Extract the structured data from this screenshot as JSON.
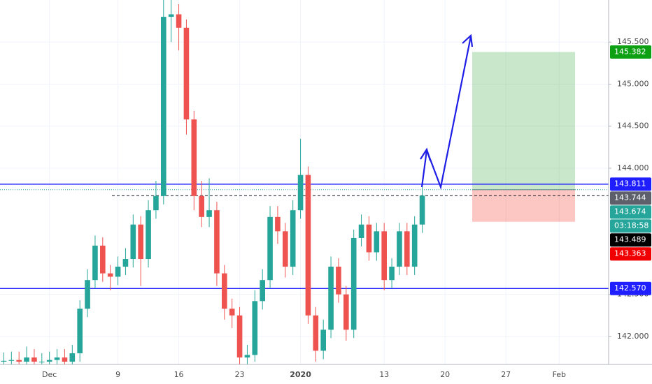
{
  "chart_data": {
    "type": "candlestick",
    "categories": [
      null,
      null,
      null,
      null,
      null,
      null,
      "Dec",
      null,
      null,
      null,
      null,
      null,
      null,
      null,
      null,
      "9",
      null,
      null,
      null,
      null,
      null,
      null,
      null,
      "16",
      null,
      null,
      null,
      null,
      null,
      null,
      null,
      "23",
      null,
      null,
      null,
      null,
      null,
      null,
      null,
      "2020",
      null,
      null,
      null,
      null,
      null,
      null,
      null,
      null,
      null,
      null,
      "13",
      null,
      null,
      null,
      null,
      null,
      null,
      null,
      "20",
      null,
      null,
      null,
      null,
      null,
      null,
      null,
      "27",
      null,
      null,
      null,
      null,
      null,
      null,
      "Feb",
      null,
      null,
      null,
      null,
      null,
      null
    ],
    "open": [
      141.7,
      141.71,
      141.72,
      141.7,
      141.75,
      141.7,
      141.7,
      141.72,
      141.75,
      141.7,
      141.8,
      142.33,
      142.67,
      143.08,
      142.75,
      142.71,
      142.83,
      142.92,
      143.33,
      142.92,
      143.5,
      143.67,
      145.8,
      145.83,
      145.67,
      144.58,
      143.67,
      143.42,
      143.5,
      142.75,
      142.33,
      142.25,
      141.75,
      141.78,
      142.42,
      142.67,
      143.42,
      143.25,
      142.83,
      143.5,
      143.92,
      142.25,
      141.83,
      142.08,
      142.83,
      142.5,
      142.08,
      143.17,
      143.33,
      143.0,
      143.25,
      142.67,
      142.83,
      143.25,
      142.83,
      143.33,
      null,
      null,
      null,
      null,
      null,
      null,
      null,
      null,
      null,
      null,
      null,
      null,
      null,
      null,
      null,
      null,
      null,
      null,
      null,
      null,
      null,
      null,
      null,
      null
    ],
    "high": [
      141.81,
      141.82,
      141.82,
      141.88,
      141.85,
      141.8,
      141.82,
      141.85,
      141.85,
      141.9,
      142.43,
      142.8,
      143.2,
      143.18,
      142.85,
      142.95,
      143.05,
      143.45,
      143.43,
      143.62,
      143.85,
      146.0,
      146.0,
      145.95,
      145.77,
      144.68,
      143.85,
      143.88,
      143.6,
      142.85,
      142.45,
      142.35,
      141.9,
      142.55,
      142.8,
      143.55,
      143.55,
      143.35,
      143.62,
      144.35,
      144.02,
      142.35,
      142.2,
      142.95,
      142.93,
      142.6,
      143.27,
      143.45,
      143.43,
      143.35,
      143.35,
      142.93,
      143.35,
      143.35,
      143.43,
      143.8,
      null,
      null,
      null,
      null,
      null,
      null,
      null,
      null,
      null,
      null,
      null,
      null,
      null,
      null,
      null,
      null,
      null,
      null,
      null,
      null,
      null,
      null,
      null,
      null
    ],
    "low": [
      141.6,
      141.61,
      141.6,
      141.6,
      141.6,
      141.6,
      141.6,
      141.62,
      141.6,
      141.6,
      141.7,
      142.23,
      142.57,
      142.65,
      142.55,
      142.61,
      142.73,
      142.82,
      142.6,
      142.82,
      143.4,
      143.57,
      145.5,
      145.4,
      144.4,
      143.5,
      143.3,
      143.3,
      142.6,
      142.2,
      142.1,
      141.65,
      141.65,
      141.7,
      142.32,
      142.57,
      143.1,
      142.7,
      142.73,
      143.4,
      142.15,
      141.7,
      141.73,
      141.98,
      142.4,
      141.95,
      141.98,
      143.07,
      142.9,
      142.9,
      142.55,
      142.57,
      142.73,
      142.73,
      142.73,
      143.23,
      null,
      null,
      null,
      null,
      null,
      null,
      null,
      null,
      null,
      null,
      null,
      null,
      null,
      null,
      null,
      null,
      null,
      null,
      null,
      null,
      null,
      null,
      null,
      null
    ],
    "close": [
      141.71,
      141.72,
      141.7,
      141.75,
      141.7,
      141.7,
      141.72,
      141.75,
      141.7,
      141.8,
      142.33,
      142.67,
      143.08,
      142.75,
      142.71,
      142.83,
      142.92,
      143.33,
      142.92,
      143.5,
      143.67,
      145.8,
      145.83,
      145.67,
      144.58,
      143.67,
      143.42,
      143.5,
      142.75,
      142.33,
      142.25,
      141.75,
      141.78,
      142.42,
      142.67,
      143.42,
      143.25,
      142.83,
      143.5,
      143.92,
      142.25,
      141.83,
      142.08,
      142.83,
      142.5,
      142.08,
      143.17,
      143.33,
      143.0,
      143.25,
      142.67,
      142.83,
      143.25,
      142.83,
      143.33,
      143.674,
      null,
      null,
      null,
      null,
      null,
      null,
      null,
      null,
      null,
      null,
      null,
      null,
      null,
      null,
      null,
      null,
      null,
      null,
      null,
      null,
      null,
      null,
      null,
      null
    ],
    "up_color": "#26a69a",
    "down_color": "#ef5350",
    "ylim": [
      141.667,
      146.0
    ],
    "yticks": [
      {
        "value": 142,
        "label": "142.000"
      },
      {
        "value": 142.5,
        "label": "142.500"
      },
      {
        "value": 144,
        "label": "144.000"
      },
      {
        "value": 144.5,
        "label": "144.500"
      },
      {
        "value": 145,
        "label": "145.000"
      },
      {
        "value": 145.5,
        "label": "145.500"
      }
    ],
    "levels": [
      {
        "value": 143.811,
        "label": "143.811",
        "color": "#1e1eff"
      },
      {
        "value": 142.57,
        "label": "142.570",
        "color": "#1e1eff"
      }
    ],
    "position": {
      "target": {
        "value": 145.382,
        "label": "145.382",
        "color": "#0ca012"
      },
      "entry": {
        "value": 143.744,
        "label": "143.744",
        "color": "#5d606b"
      },
      "stop": {
        "value": 143.363,
        "label": "143.363",
        "color": "#f00000"
      }
    },
    "last_price": {
      "value": 143.674,
      "label": "143.674",
      "countdown": "03:18:58",
      "color": "#26a69a"
    },
    "bid": {
      "value": 143.489,
      "label": "143.489",
      "color": "#000000"
    }
  }
}
